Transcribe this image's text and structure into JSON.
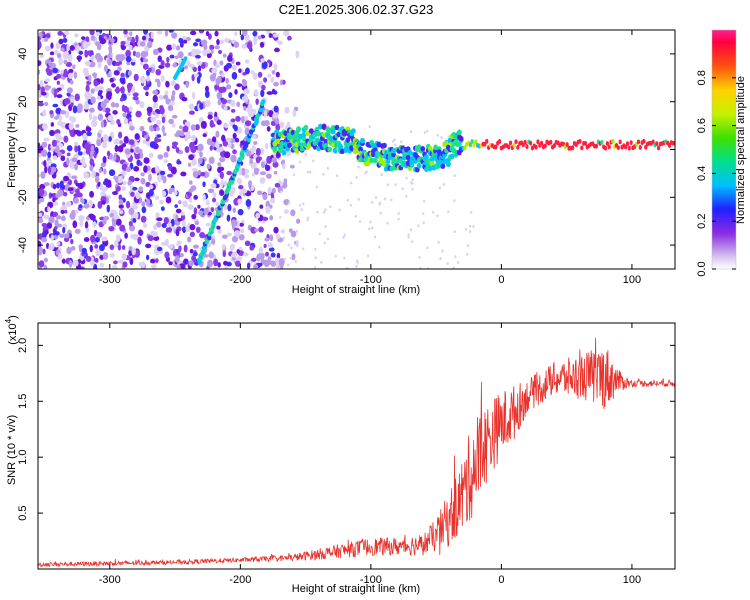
{
  "title": "C2E1.2025.306.02.37.G23",
  "colorbar": {
    "label": "Normalized spectral amplitude",
    "ticks": [
      "0.0",
      "0.2",
      "0.4",
      "0.6",
      "0.8"
    ],
    "tick_values": [
      0.0,
      0.2,
      0.4,
      0.6,
      0.8
    ],
    "range": [
      0.0,
      1.0
    ]
  },
  "chart_data": [
    {
      "type": "heatmap",
      "name": "spectrogram",
      "xlabel": "Height of straight line (km)",
      "ylabel": "Frequency (Hz)",
      "xlim": [
        -355,
        133
      ],
      "ylim": [
        -50,
        50
      ],
      "xticks": [
        -300,
        -200,
        -100,
        0,
        100
      ],
      "xtick_labels": [
        "-300",
        "-200",
        "-100",
        "0",
        "100"
      ],
      "yticks": [
        -40,
        -20,
        0,
        20,
        40
      ],
      "ytick_labels": [
        "-40",
        "-20",
        "0",
        "20",
        "40"
      ],
      "features": {
        "noise_region_end_km": -170,
        "diagonal_streak": {
          "from": [
            -232,
            -47
          ],
          "to": [
            -182,
            20
          ]
        },
        "upper_streak": {
          "from": [
            -250,
            30
          ],
          "to": [
            -242,
            38
          ]
        },
        "tone_start_km": -175,
        "tone_frequency_hz": 2,
        "strong_tone_from_km": -30
      }
    },
    {
      "type": "line",
      "name": "snr",
      "xlabel": "Height of straight line (km)",
      "ylabel": "SNR (10 * v/v)",
      "yscale_label": "(x10",
      "yscale_exponent": "4",
      "xlim": [
        -355,
        133
      ],
      "ylim": [
        0,
        2.2
      ],
      "xticks": [
        -300,
        -200,
        -100,
        0,
        100
      ],
      "xtick_labels": [
        "-300",
        "-200",
        "-100",
        "0",
        "100"
      ],
      "yticks": [
        0.5,
        1.0,
        1.5,
        2.0
      ],
      "ytick_labels": [
        "0.5",
        "1.0",
        "1.5",
        "2.0"
      ],
      "color": "#e8322c",
      "x": [
        -355,
        -300,
        -250,
        -200,
        -160,
        -130,
        -100,
        -80,
        -60,
        -50,
        -40,
        -30,
        -20,
        -10,
        0,
        10,
        20,
        30,
        40,
        60,
        80,
        90,
        100,
        120,
        133
      ],
      "y": [
        0.04,
        0.05,
        0.06,
        0.08,
        0.1,
        0.15,
        0.2,
        0.2,
        0.22,
        0.3,
        0.45,
        0.65,
        0.95,
        1.15,
        1.3,
        1.4,
        1.55,
        1.62,
        1.7,
        1.72,
        1.72,
        1.68,
        1.66,
        1.66,
        1.66
      ],
      "noise_amplitude": [
        0.02,
        0.02,
        0.02,
        0.02,
        0.03,
        0.06,
        0.08,
        0.08,
        0.1,
        0.15,
        0.25,
        0.35,
        0.45,
        0.35,
        0.3,
        0.25,
        0.15,
        0.15,
        0.15,
        0.2,
        0.3,
        0.1,
        0.03,
        0.03,
        0.03
      ]
    }
  ]
}
